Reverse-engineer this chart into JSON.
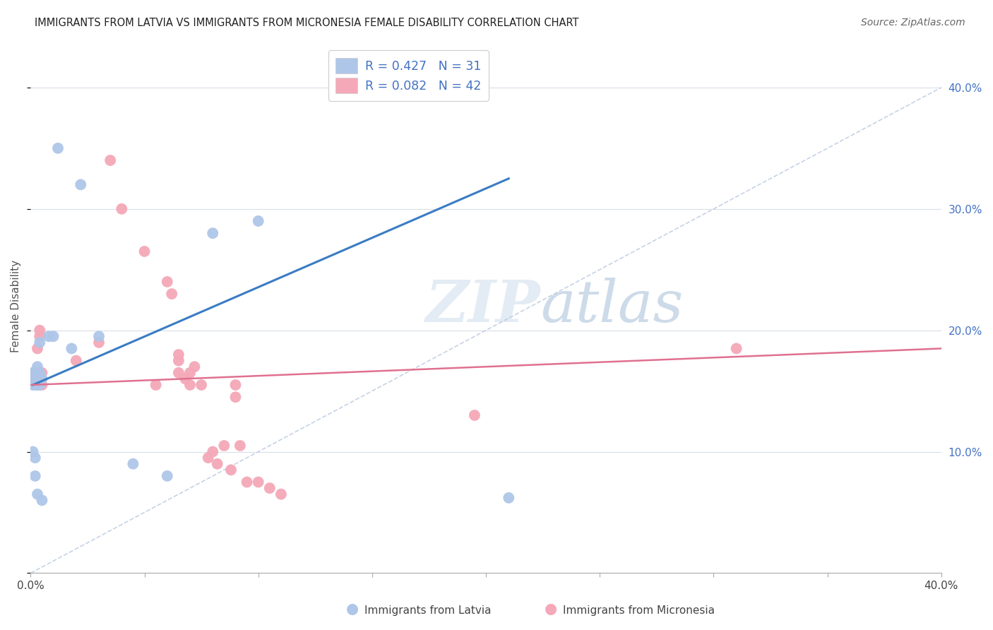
{
  "title": "IMMIGRANTS FROM LATVIA VS IMMIGRANTS FROM MICRONESIA FEMALE DISABILITY CORRELATION CHART",
  "source": "Source: ZipAtlas.com",
  "ylabel": "Female Disability",
  "latvia_R": 0.427,
  "latvia_N": 31,
  "micronesia_R": 0.082,
  "micronesia_N": 42,
  "latvia_color": "#aec6e8",
  "micronesia_color": "#f4a8b8",
  "latvia_line_color": "#3a7cc3",
  "micronesia_line_color": "#e07090",
  "diagonal_color": "#b8c8de",
  "xlim": [
    0.0,
    0.4
  ],
  "ylim": [
    0.0,
    0.44
  ],
  "latvia_x": [
    0.001,
    0.001,
    0.001,
    0.001,
    0.002,
    0.002,
    0.002,
    0.002,
    0.002,
    0.003,
    0.003,
    0.003,
    0.003,
    0.003,
    0.003,
    0.004,
    0.004,
    0.004,
    0.005,
    0.005,
    0.008,
    0.01,
    0.012,
    0.018,
    0.022,
    0.03,
    0.045,
    0.06,
    0.08,
    0.1,
    0.21
  ],
  "latvia_y": [
    0.155,
    0.16,
    0.165,
    0.1,
    0.155,
    0.16,
    0.165,
    0.095,
    0.08,
    0.155,
    0.16,
    0.165,
    0.17,
    0.155,
    0.065,
    0.155,
    0.165,
    0.19,
    0.16,
    0.06,
    0.195,
    0.195,
    0.35,
    0.185,
    0.32,
    0.195,
    0.09,
    0.08,
    0.28,
    0.29,
    0.062
  ],
  "micronesia_x": [
    0.001,
    0.002,
    0.002,
    0.002,
    0.003,
    0.003,
    0.003,
    0.004,
    0.004,
    0.004,
    0.005,
    0.005,
    0.02,
    0.03,
    0.035,
    0.04,
    0.05,
    0.055,
    0.06,
    0.062,
    0.065,
    0.065,
    0.065,
    0.068,
    0.07,
    0.07,
    0.072,
    0.075,
    0.078,
    0.08,
    0.082,
    0.085,
    0.088,
    0.09,
    0.09,
    0.092,
    0.095,
    0.1,
    0.105,
    0.11,
    0.195,
    0.31
  ],
  "micronesia_y": [
    0.165,
    0.165,
    0.165,
    0.16,
    0.165,
    0.165,
    0.185,
    0.165,
    0.195,
    0.2,
    0.155,
    0.165,
    0.175,
    0.19,
    0.34,
    0.3,
    0.265,
    0.155,
    0.24,
    0.23,
    0.175,
    0.18,
    0.165,
    0.16,
    0.165,
    0.155,
    0.17,
    0.155,
    0.095,
    0.1,
    0.09,
    0.105,
    0.085,
    0.155,
    0.145,
    0.105,
    0.075,
    0.075,
    0.07,
    0.065,
    0.13,
    0.185
  ],
  "latvia_line_x": [
    0.001,
    0.21
  ],
  "latvia_line_y": [
    0.155,
    0.325
  ],
  "micronesia_line_x": [
    0.0,
    0.4
  ],
  "micronesia_line_y": [
    0.155,
    0.185
  ]
}
